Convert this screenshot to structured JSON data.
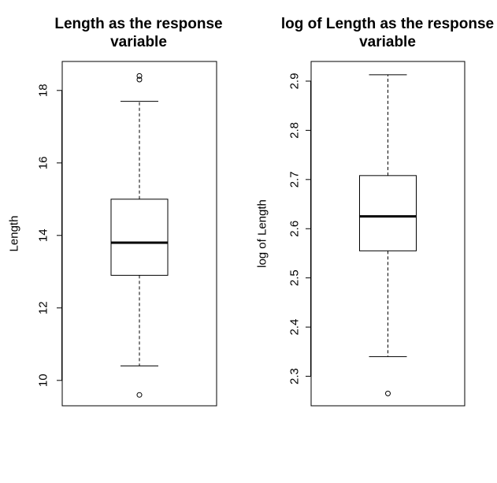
{
  "chart_data": [
    {
      "type": "boxplot",
      "title_lines": [
        "Length as the response",
        "variable"
      ],
      "ylabel": "Length",
      "ylim": [
        9.3,
        18.8
      ],
      "yticks": [
        10,
        12,
        14,
        16,
        18
      ],
      "ytick_labels": [
        "10",
        "12",
        "14",
        "16",
        "18"
      ],
      "box": {
        "whisker_low": 10.4,
        "q1": 12.9,
        "median": 13.8,
        "q3": 15.0,
        "whisker_high": 17.7
      },
      "outliers": [
        9.6,
        18.3,
        18.4
      ]
    },
    {
      "type": "boxplot",
      "title_lines": [
        "log of Length as the response",
        "variable"
      ],
      "ylabel": "log of Length",
      "ylim": [
        2.24,
        2.94
      ],
      "yticks": [
        2.3,
        2.4,
        2.5,
        2.6,
        2.7,
        2.8,
        2.9
      ],
      "ytick_labels": [
        "2.3",
        "2.4",
        "2.5",
        "2.6",
        "2.7",
        "2.8",
        "2.9"
      ],
      "box": {
        "whisker_low": 2.34,
        "q1": 2.555,
        "median": 2.625,
        "q3": 2.708,
        "whisker_high": 2.913
      },
      "outliers": [
        2.265
      ]
    }
  ]
}
